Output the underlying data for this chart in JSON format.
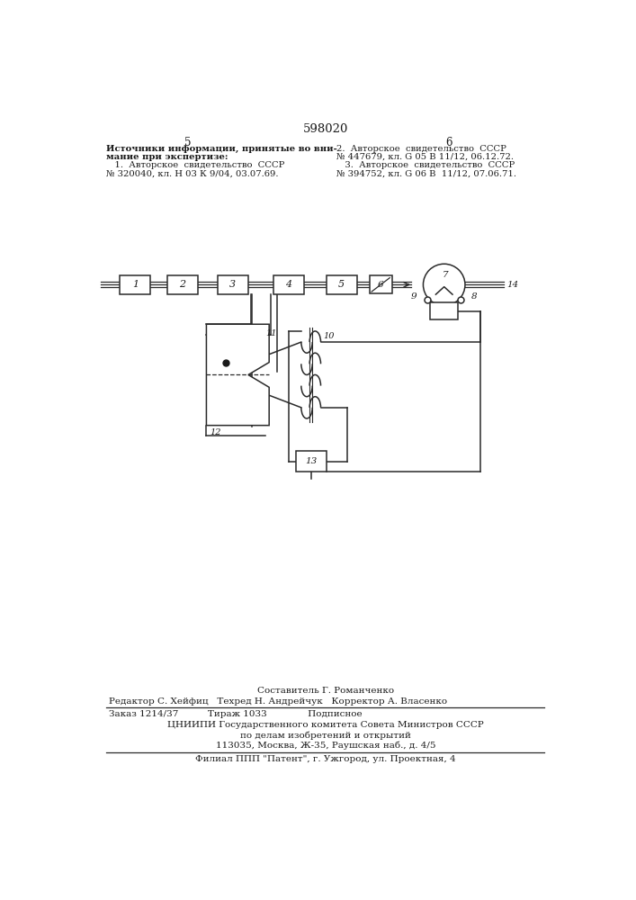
{
  "page_title": "598020",
  "col_left_num": "5",
  "col_right_num": "6",
  "left_text_line1": "Источники информации, принятые во вни-",
  "left_text_line2": "мание при экспертизе:",
  "left_text_line3": "   1.  Авторское  свидетельство  СССР",
  "left_text_line4": "№ 320040, кл. Н 03 К 9/04, 03.07.69.",
  "right_text_line1": "2.  Авторское  свидетельство  СССР",
  "right_text_line2": "№ 447679, кл. G 05 В 11/12, 06.12.72.",
  "right_text_line3": "   3.  Авторское  свидетельство  СССР",
  "right_text_line4": "№ 394752, кл. G 06 В  11/12, 07.06.71.",
  "footer1": "Составитель Г. Романченко",
  "footer2": "Редактор С. Хейфиц   Техред Н. Андрейчук   Корректор А. Власенко",
  "footer3": "Заказ 1214/37          Тираж 1033              Подписное",
  "footer4": "ЦНИИПИ Государственного комитета Совета Министров СССР",
  "footer5": "по делам изобретений и открытий",
  "footer6": "113035, Москва, Ж-35, Раушская наб., д. 4/5",
  "footer7": "Филиал ППП \"Патент\", г. Ужгород, ул. Проектная, 4",
  "bg_color": "#ffffff",
  "text_color": "#1a1a1a",
  "line_color": "#2a2a2a",
  "lw_main": 1.1,
  "lw_thin": 0.9
}
